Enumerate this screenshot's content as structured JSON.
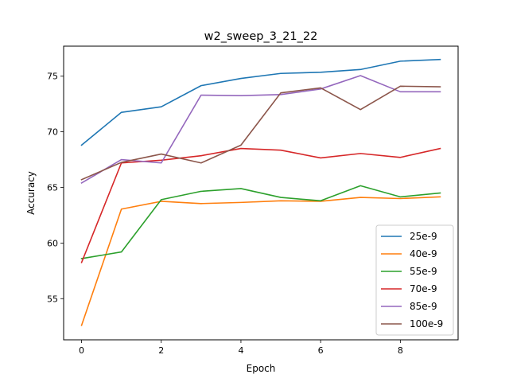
{
  "chart_data": {
    "type": "line",
    "title": "w2_sweep_3_21_22",
    "xlabel": "Epoch",
    "ylabel": "Accuracy",
    "xlim": [
      -0.45,
      9.45
    ],
    "ylim": [
      51.3,
      77.7
    ],
    "xticks": [
      0,
      2,
      4,
      6,
      8
    ],
    "yticks": [
      55,
      60,
      65,
      70,
      75
    ],
    "grid": false,
    "legend_position": "lower right",
    "x": [
      0,
      1,
      2,
      3,
      4,
      5,
      6,
      7,
      8,
      9
    ],
    "series": [
      {
        "name": "25e-9",
        "color": "#1f77b4",
        "values": [
          68.8,
          71.75,
          72.25,
          74.15,
          74.8,
          75.25,
          75.35,
          75.6,
          76.35,
          76.5
        ]
      },
      {
        "name": "40e-9",
        "color": "#ff7f0e",
        "values": [
          52.6,
          63.05,
          63.75,
          63.55,
          63.65,
          63.8,
          63.75,
          64.1,
          64.0,
          64.15
        ]
      },
      {
        "name": "55e-9",
        "color": "#2ca02c",
        "values": [
          58.6,
          59.2,
          63.9,
          64.65,
          64.9,
          64.1,
          63.8,
          65.15,
          64.15,
          64.5
        ]
      },
      {
        "name": "70e-9",
        "color": "#d62728",
        "values": [
          58.25,
          67.2,
          67.45,
          67.85,
          68.5,
          68.35,
          67.65,
          68.05,
          67.7,
          68.5
        ]
      },
      {
        "name": "85e-9",
        "color": "#9467bd",
        "values": [
          65.4,
          67.5,
          67.2,
          73.3,
          73.25,
          73.35,
          73.85,
          75.05,
          73.6,
          73.6
        ]
      },
      {
        "name": "100e-9",
        "color": "#8c564b",
        "values": [
          65.7,
          67.25,
          68.0,
          67.2,
          68.8,
          73.5,
          73.95,
          72.0,
          74.1,
          74.05
        ]
      }
    ]
  }
}
